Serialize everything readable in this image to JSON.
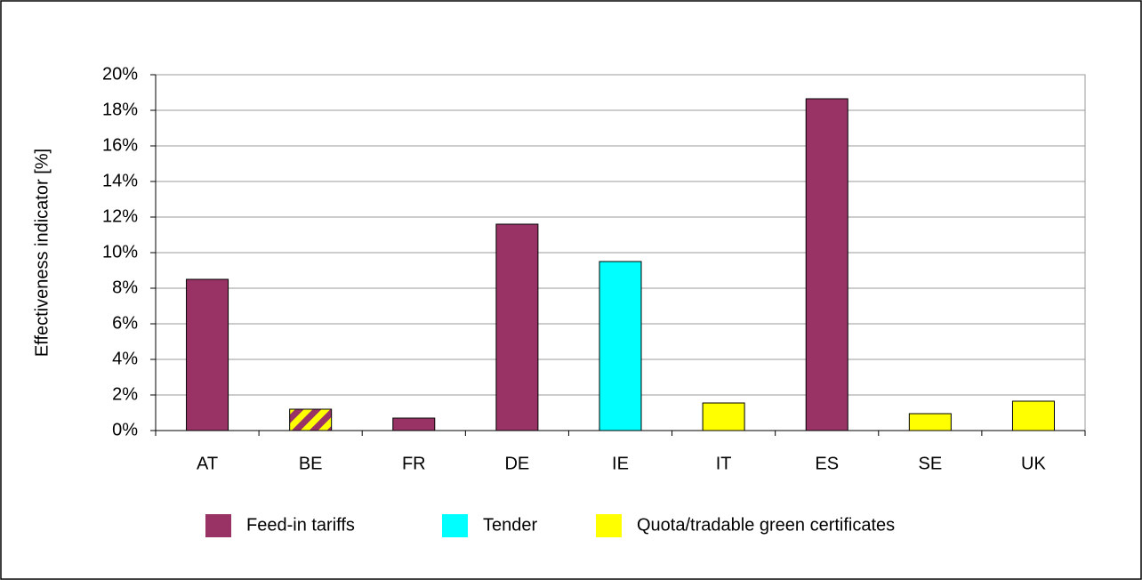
{
  "chart_data": {
    "type": "bar",
    "y_label": "Effectiveness indicator [%]",
    "categories": [
      "AT",
      "BE",
      "FR",
      "DE",
      "IE",
      "IT",
      "ES",
      "SE",
      "UK"
    ],
    "values": [
      8.5,
      1.2,
      0.7,
      11.6,
      9.5,
      1.55,
      18.65,
      0.95,
      1.65
    ],
    "legend": [
      {
        "name": "Feed-in tariffs",
        "color": "#993366"
      },
      {
        "name": "Tender",
        "color": "#00ffff"
      },
      {
        "name": "Quota/tradable green certificates",
        "color": "#ffff00"
      }
    ],
    "bar_policy": [
      0,
      [
        0,
        2
      ],
      0,
      0,
      1,
      2,
      0,
      2,
      2
    ],
    "ylim": [
      0,
      20
    ],
    "yticks": [
      {
        "value": 0,
        "label": "0%"
      },
      {
        "value": 2,
        "label": "2%"
      },
      {
        "value": 4,
        "label": "4%"
      },
      {
        "value": 6,
        "label": "6%"
      },
      {
        "value": 8,
        "label": "8%"
      },
      {
        "value": 10,
        "label": "10%"
      },
      {
        "value": 12,
        "label": "12%"
      },
      {
        "value": 14,
        "label": "14%"
      },
      {
        "value": 16,
        "label": "16%"
      },
      {
        "value": 18,
        "label": "18%"
      },
      {
        "value": 20,
        "label": "20%"
      }
    ],
    "grid": true
  }
}
